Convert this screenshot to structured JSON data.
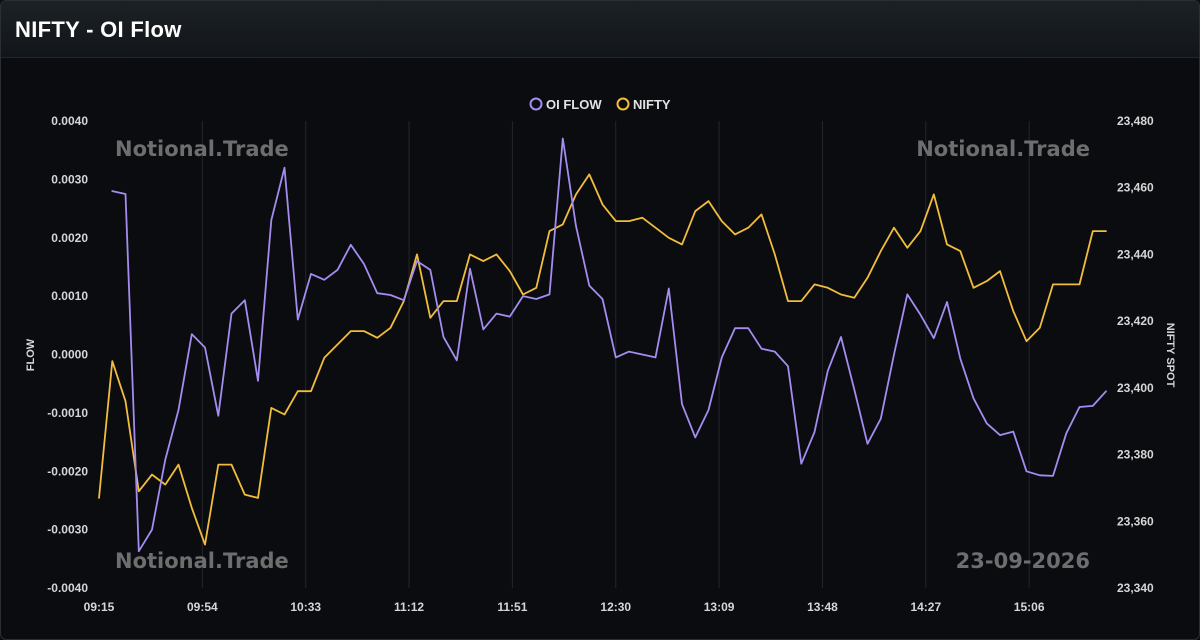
{
  "header": {
    "title": "NIFTY - OI Flow"
  },
  "watermarks": {
    "top_left": "Notional.Trade",
    "top_right": "Notional.Trade",
    "bottom_left": "Notional.Trade",
    "bottom_right": "23-09-2026"
  },
  "colors": {
    "oi_flow": "#a48cf0",
    "nifty": "#f2bd3c",
    "background": "#0b0c10",
    "grid": "#23262c"
  },
  "chart_data": {
    "type": "line",
    "x_labels": [
      "09:15",
      "09:54",
      "10:33",
      "11:12",
      "11:51",
      "12:30",
      "13:09",
      "13:48",
      "14:27",
      "15:06"
    ],
    "legend": {
      "position": "top-center",
      "entries": [
        "OI FLOW",
        "NIFTY"
      ]
    },
    "grid": {
      "vertical": true,
      "horizontal": false
    },
    "y_left": {
      "label": "FLOW",
      "min": -0.004,
      "max": 0.004,
      "ticks": [
        "0.0040",
        "0.0030",
        "0.0020",
        "0.0010",
        "0.0000",
        "-0.0010",
        "-0.0020",
        "-0.0030",
        "-0.0040"
      ]
    },
    "y_right": {
      "label": "NIFTY SPOT",
      "min": 23340,
      "max": 23480,
      "ticks": [
        "23,480",
        "23,460",
        "23,440",
        "23,420",
        "23,400",
        "23,380",
        "23,360",
        "23,340"
      ]
    },
    "series": [
      {
        "name": "OI FLOW",
        "axis": "left",
        "x_start": 1,
        "values": [
          0.0028,
          0.00275,
          -0.00337,
          -0.003,
          -0.0018,
          -0.00095,
          0.00035,
          0.00012,
          -0.00105,
          0.0007,
          0.00093,
          -0.00045,
          0.0023,
          0.0032,
          0.0006,
          0.00138,
          0.00128,
          0.00145,
          0.00188,
          0.00155,
          0.00105,
          0.00102,
          0.00093,
          0.0016,
          0.00145,
          0.0003,
          -0.0001,
          0.00147,
          0.00043,
          0.0007,
          0.00065,
          0.001,
          0.00095,
          0.00103,
          0.0037,
          0.0022,
          0.00118,
          0.00095,
          -5e-05,
          5e-05,
          0.0,
          -5e-05,
          0.00113,
          -0.00085,
          -0.00142,
          -0.00095,
          -5e-05,
          0.00045,
          0.00045,
          0.0001,
          5e-05,
          -0.0002,
          -0.00187,
          -0.00133,
          -0.00028,
          0.0003,
          -0.0006,
          -0.00153,
          -0.0011,
          0.0,
          0.00103,
          0.00068,
          0.00028,
          0.0009,
          -7e-05,
          -0.00075,
          -0.00118,
          -0.00138,
          -0.00132,
          -0.002,
          -0.00207,
          -0.00208,
          -0.00135,
          -0.0009,
          -0.00088,
          -0.00063
        ]
      },
      {
        "name": "NIFTY",
        "axis": "right",
        "x_start": 0,
        "values": [
          23367,
          23408,
          23396,
          23369,
          23374,
          23371,
          23377,
          23364,
          23353,
          23377,
          23377,
          23368,
          23367,
          23394,
          23392,
          23399,
          23399,
          23409,
          23413,
          23417,
          23417,
          23415,
          23418,
          23426,
          23440,
          23421,
          23426,
          23426,
          23440,
          23438,
          23440,
          23435,
          23428,
          23430,
          23447,
          23449,
          23458,
          23464,
          23455,
          23450,
          23450,
          23451,
          23448,
          23445,
          23443,
          23453,
          23456,
          23450,
          23446,
          23448,
          23452,
          23440,
          23426,
          23426,
          23431,
          23430,
          23428,
          23427,
          23433,
          23441,
          23448,
          23442,
          23447,
          23458,
          23443,
          23441,
          23430,
          23432,
          23435,
          23423,
          23414,
          23418,
          23431,
          23431,
          23431,
          23447,
          23447
        ]
      }
    ]
  }
}
